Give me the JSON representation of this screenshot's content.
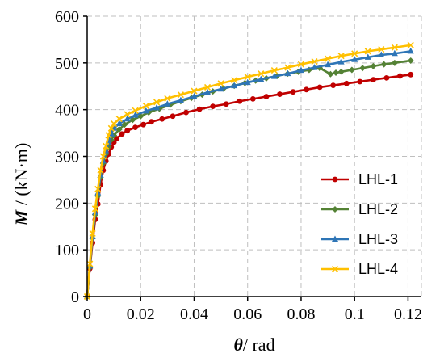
{
  "chart_data": {
    "type": "line",
    "xlabel": {
      "symbol": "θ",
      "rest": "/ rad"
    },
    "ylabel": {
      "symbol": "M",
      "rest": " / (kN·m)"
    },
    "xlim": [
      0,
      0.125
    ],
    "ylim": [
      0,
      600
    ],
    "x_ticks": [
      "0",
      "0.02",
      "0.04",
      "0.06",
      "0.08",
      "0.1",
      "0.12"
    ],
    "y_ticks": [
      "0",
      "100",
      "200",
      "300",
      "400",
      "500",
      "600"
    ],
    "grid": true,
    "legend_position": "center-right",
    "series": [
      {
        "name": "LHL-1",
        "color": "#c00000",
        "marker": "circle",
        "x": [
          0,
          0.001,
          0.002,
          0.003,
          0.004,
          0.005,
          0.006,
          0.007,
          0.008,
          0.009,
          0.01,
          0.011,
          0.013,
          0.015,
          0.018,
          0.021,
          0.024,
          0.028,
          0.032,
          0.037,
          0.042,
          0.047,
          0.052,
          0.057,
          0.062,
          0.067,
          0.072,
          0.077,
          0.082,
          0.087,
          0.092,
          0.097,
          0.102,
          0.107,
          0.112,
          0.117,
          0.121
        ],
        "y": [
          0,
          60,
          115,
          165,
          198,
          240,
          270,
          290,
          305,
          320,
          330,
          338,
          348,
          355,
          362,
          368,
          374,
          380,
          386,
          394,
          401,
          407,
          412,
          418,
          423,
          428,
          433,
          438,
          443,
          448,
          452,
          456,
          460,
          464,
          468,
          472,
          475
        ]
      },
      {
        "name": "LHL-2",
        "color": "#548235",
        "marker": "diamond",
        "x": [
          0,
          0.001,
          0.002,
          0.003,
          0.004,
          0.005,
          0.006,
          0.007,
          0.008,
          0.009,
          0.01,
          0.012,
          0.014,
          0.017,
          0.02,
          0.023,
          0.027,
          0.031,
          0.035,
          0.039,
          0.043,
          0.047,
          0.051,
          0.055,
          0.059,
          0.063,
          0.067,
          0.071,
          0.075,
          0.079,
          0.083,
          0.087,
          0.091,
          0.093,
          0.095,
          0.099,
          0.103,
          0.107,
          0.111,
          0.115,
          0.121
        ],
        "y": [
          0,
          62,
          125,
          175,
          215,
          255,
          285,
          305,
          320,
          335,
          345,
          358,
          368,
          378,
          386,
          394,
          402,
          410,
          418,
          425,
          432,
          439,
          445,
          451,
          457,
          462,
          467,
          472,
          477,
          481,
          485,
          489,
          476,
          479,
          481,
          485,
          489,
          493,
          497,
          500,
          505
        ]
      },
      {
        "name": "LHL-3",
        "color": "#2e75b6",
        "marker": "triangle",
        "x": [
          0,
          0.001,
          0.002,
          0.003,
          0.004,
          0.005,
          0.006,
          0.007,
          0.008,
          0.009,
          0.01,
          0.012,
          0.015,
          0.018,
          0.022,
          0.026,
          0.03,
          0.035,
          0.04,
          0.045,
          0.05,
          0.055,
          0.06,
          0.065,
          0.07,
          0.075,
          0.08,
          0.085,
          0.09,
          0.095,
          0.1,
          0.105,
          0.11,
          0.115,
          0.121
        ],
        "y": [
          0,
          65,
          128,
          180,
          222,
          260,
          290,
          312,
          330,
          348,
          360,
          370,
          380,
          388,
          397,
          404,
          412,
          420,
          428,
          437,
          444,
          451,
          458,
          465,
          471,
          477,
          484,
          490,
          496,
          502,
          507,
          512,
          517,
          520,
          525
        ]
      },
      {
        "name": "LHL-4",
        "color": "#ffc000",
        "marker": "x",
        "x": [
          0,
          0.001,
          0.002,
          0.003,
          0.004,
          0.005,
          0.006,
          0.007,
          0.008,
          0.009,
          0.01,
          0.012,
          0.015,
          0.018,
          0.022,
          0.026,
          0.03,
          0.035,
          0.04,
          0.045,
          0.05,
          0.055,
          0.06,
          0.065,
          0.07,
          0.075,
          0.08,
          0.085,
          0.09,
          0.095,
          0.1,
          0.105,
          0.11,
          0.115,
          0.121
        ],
        "y": [
          0,
          70,
          135,
          188,
          230,
          270,
          300,
          322,
          345,
          360,
          370,
          380,
          390,
          398,
          408,
          416,
          424,
          432,
          440,
          448,
          456,
          463,
          470,
          477,
          484,
          490,
          497,
          503,
          509,
          515,
          520,
          525,
          529,
          533,
          538
        ]
      }
    ]
  }
}
